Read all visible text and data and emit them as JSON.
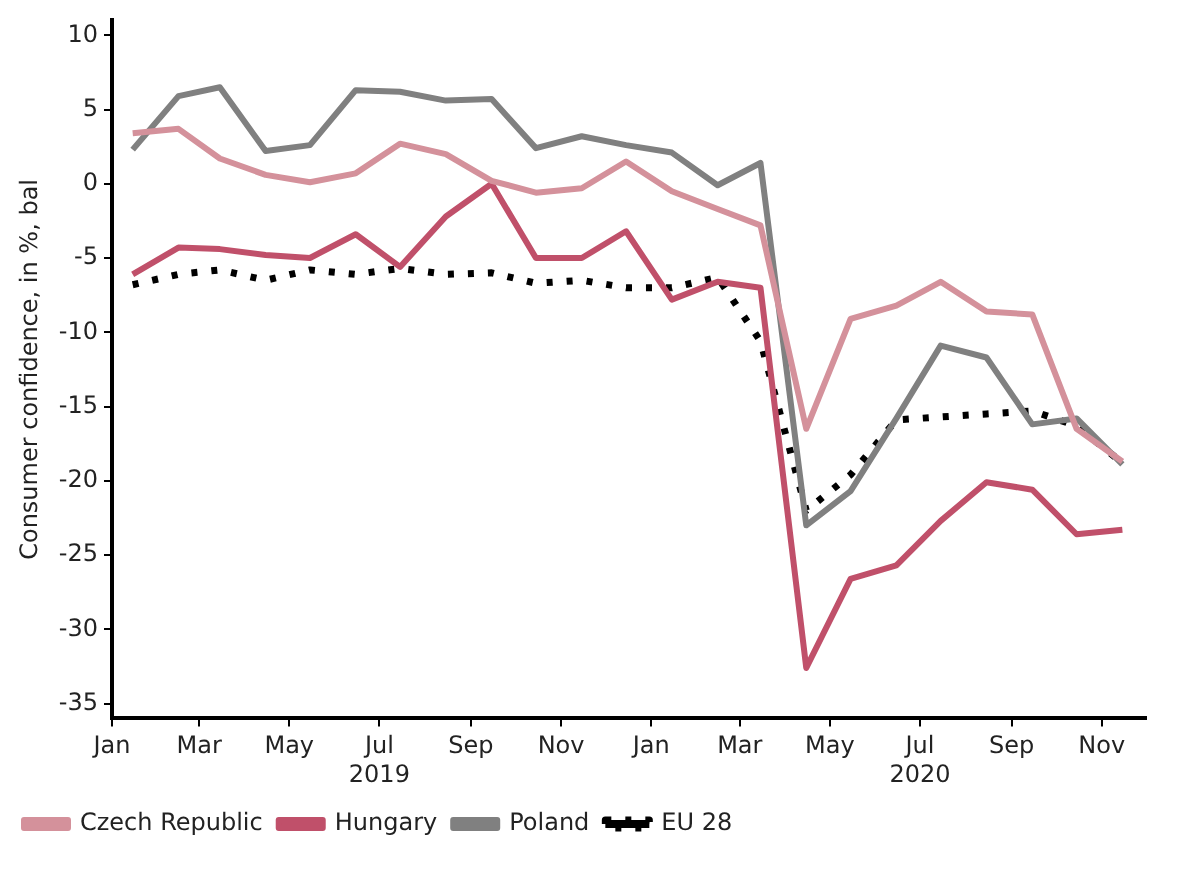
{
  "chart_data": {
    "type": "line",
    "ylabel": "Consumer confidence, in %, bal",
    "x": [
      "2019-01-15",
      "2019-02-15",
      "2019-03-15",
      "2019-04-15",
      "2019-05-15",
      "2019-06-15",
      "2019-07-15",
      "2019-08-15",
      "2019-09-15",
      "2019-10-15",
      "2019-11-15",
      "2019-12-15",
      "2020-01-15",
      "2020-02-15",
      "2020-03-15",
      "2020-04-15",
      "2020-05-15",
      "2020-06-15",
      "2020-07-15",
      "2020-08-15",
      "2020-09-15",
      "2020-10-15",
      "2020-11-15"
    ],
    "series": [
      {
        "name": "Czech Republic",
        "color": "#d4919b",
        "line_style": "solid",
        "values": [
          3.4,
          3.7,
          1.7,
          0.6,
          0.1,
          0.7,
          2.7,
          2.0,
          0.2,
          -0.6,
          -0.3,
          1.5,
          -0.5,
          -1.7,
          -2.8,
          -16.5,
          -9.1,
          -8.2,
          -6.6,
          -8.6,
          -8.8,
          -16.5,
          -18.7
        ]
      },
      {
        "name": "Hungary",
        "color": "#c0506a",
        "line_style": "solid",
        "values": [
          -6.1,
          -4.3,
          -4.4,
          -4.8,
          -5.0,
          -3.4,
          -5.6,
          -2.2,
          0.0,
          -5.0,
          -5.0,
          -3.2,
          -7.8,
          -6.6,
          -7.0,
          -32.6,
          -26.6,
          -25.7,
          -22.7,
          -20.1,
          -20.6,
          -23.6,
          -23.3
        ]
      },
      {
        "name": "Poland",
        "color": "#808080",
        "line_style": "solid",
        "values": [
          2.3,
          5.9,
          6.5,
          2.2,
          2.6,
          6.3,
          6.2,
          5.6,
          5.7,
          2.4,
          3.2,
          2.6,
          2.1,
          -0.1,
          1.4,
          -23.0,
          -20.7,
          -15.8,
          -10.9,
          -11.7,
          -16.2,
          -15.8,
          -18.9
        ]
      },
      {
        "name": "EU 28",
        "color": "#000000",
        "line_style": "dotted",
        "values": [
          -6.8,
          -6.1,
          -5.8,
          -6.5,
          -5.8,
          -6.1,
          -5.7,
          -6.1,
          -6.0,
          -6.7,
          -6.5,
          -7.0,
          -7.0,
          -6.3,
          -10.6,
          -22.0,
          -19.6,
          -15.9,
          -15.7,
          -15.5,
          -15.3,
          -16.3,
          -18.8
        ]
      }
    ],
    "xlim": [
      "2019-01-01",
      "2020-12-01"
    ],
    "xticks": [
      {
        "value": "2019-01-01",
        "label": "Jan"
      },
      {
        "value": "2019-03-01",
        "label": "Mar"
      },
      {
        "value": "2019-05-01",
        "label": "May"
      },
      {
        "value": "2019-07-01",
        "label": "Jul\n2019"
      },
      {
        "value": "2019-09-01",
        "label": "Sep"
      },
      {
        "value": "2019-11-01",
        "label": "Nov"
      },
      {
        "value": "2020-01-01",
        "label": "Jan"
      },
      {
        "value": "2020-03-01",
        "label": "Mar"
      },
      {
        "value": "2020-05-01",
        "label": "May"
      },
      {
        "value": "2020-07-01",
        "label": "Jul\n2020"
      },
      {
        "value": "2020-09-01",
        "label": "Sep"
      },
      {
        "value": "2020-11-01",
        "label": "Nov"
      }
    ],
    "ylim": [
      -36,
      11
    ],
    "yticks": [
      -35,
      -30,
      -25,
      -20,
      -15,
      -10,
      -5,
      0,
      5,
      10
    ],
    "grid": false,
    "legend": "bottom",
    "marker": "none"
  }
}
